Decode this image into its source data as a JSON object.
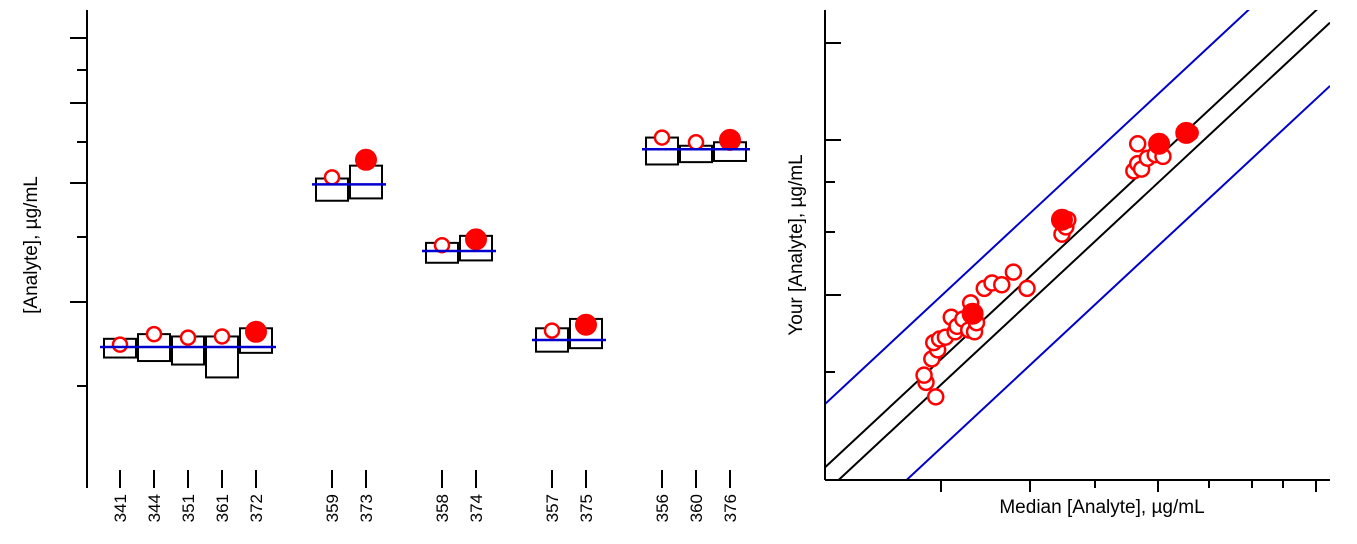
{
  "chart_data": [
    {
      "type": "scatter",
      "ylabel": "[Analyte], µg/mL",
      "xlabel": "",
      "y_tick_labels": false,
      "groups": [
        {
          "median": 0.0,
          "items": [
            {
              "label": "341",
              "box_low": -0.45,
              "box_high": 0.35,
              "value": 0.1,
              "filled": false
            },
            {
              "label": "344",
              "box_low": -0.6,
              "box_high": 0.55,
              "value": 0.55,
              "filled": false
            },
            {
              "label": "351",
              "box_low": -0.75,
              "box_high": 0.45,
              "value": 0.4,
              "filled": false
            },
            {
              "label": "361",
              "box_low": -1.3,
              "box_high": 0.45,
              "value": 0.45,
              "filled": false
            },
            {
              "label": "372",
              "box_low": -0.25,
              "box_high": 0.8,
              "value": 0.65,
              "filled": true
            }
          ]
        },
        {
          "median": 6.95,
          "items": [
            {
              "label": "359",
              "box_low": 6.25,
              "box_high": 7.2,
              "value": 7.25,
              "filled": false
            },
            {
              "label": "373",
              "box_low": 6.35,
              "box_high": 7.75,
              "value": 8.0,
              "filled": true
            }
          ]
        },
        {
          "median": 4.1,
          "items": [
            {
              "label": "358",
              "box_low": 3.6,
              "box_high": 4.45,
              "value": 4.35,
              "filled": false
            },
            {
              "label": "374",
              "box_low": 3.7,
              "box_high": 4.75,
              "value": 4.6,
              "filled": true
            }
          ]
        },
        {
          "median": 0.3,
          "items": [
            {
              "label": "357",
              "box_low": -0.2,
              "box_high": 0.8,
              "value": 0.7,
              "filled": false
            },
            {
              "label": "375",
              "box_low": -0.05,
              "box_high": 1.2,
              "value": 0.95,
              "filled": true
            }
          ]
        },
        {
          "median": 8.45,
          "items": [
            {
              "label": "356",
              "box_low": 7.8,
              "box_high": 8.95,
              "value": 8.95,
              "filled": false
            },
            {
              "label": "360",
              "box_low": 7.9,
              "box_high": 8.6,
              "value": 8.75,
              "filled": false
            },
            {
              "label": "376",
              "box_low": 7.95,
              "box_high": 8.75,
              "value": 8.85,
              "filled": true
            }
          ]
        }
      ]
    },
    {
      "type": "scatter",
      "xlabel": "Median [Analyte], µg/mL",
      "ylabel": "Your [Analyte], µg/mL",
      "tick_labels": false,
      "xlim": [
        0,
        13
      ],
      "ylim": [
        0,
        13
      ],
      "identity_lines": {
        "offsets": [
          0.35,
          -0.35
        ],
        "color": "#000000"
      },
      "limit_lines": {
        "offsets": [
          2.1,
          -2.1
        ],
        "color": "#0000cc"
      },
      "series": [
        {
          "marker": "open-circle",
          "color": "#ff0000",
          "points": [
            [
              2.6,
              2.7
            ],
            [
              2.55,
              2.9
            ],
            [
              2.85,
              2.3
            ],
            [
              2.75,
              3.35
            ],
            [
              2.9,
              3.6
            ],
            [
              2.8,
              3.8
            ],
            [
              2.95,
              3.9
            ],
            [
              3.1,
              3.95
            ],
            [
              3.25,
              4.5
            ],
            [
              3.35,
              4.1
            ],
            [
              3.4,
              4.25
            ],
            [
              3.55,
              4.45
            ],
            [
              3.7,
              4.15
            ],
            [
              3.85,
              4.1
            ],
            [
              3.9,
              4.35
            ],
            [
              3.75,
              4.9
            ],
            [
              4.1,
              5.3
            ],
            [
              4.3,
              5.45
            ],
            [
              4.55,
              5.4
            ],
            [
              4.85,
              5.75
            ],
            [
              5.2,
              5.3
            ],
            [
              6.1,
              6.8
            ],
            [
              6.2,
              7.0
            ],
            [
              6.25,
              7.2
            ],
            [
              7.95,
              8.55
            ],
            [
              8.05,
              8.75
            ],
            [
              8.15,
              8.6
            ],
            [
              8.3,
              8.9
            ],
            [
              8.5,
              9.0
            ],
            [
              8.7,
              8.95
            ],
            [
              8.05,
              9.3
            ],
            [
              9.35,
              9.6
            ],
            [
              9.4,
              9.6
            ]
          ]
        },
        {
          "marker": "filled-circle",
          "color": "#ff0000",
          "points": [
            [
              3.8,
              4.6
            ],
            [
              6.1,
              7.2
            ],
            [
              8.6,
              9.3
            ],
            [
              9.3,
              9.6
            ]
          ]
        }
      ]
    }
  ]
}
